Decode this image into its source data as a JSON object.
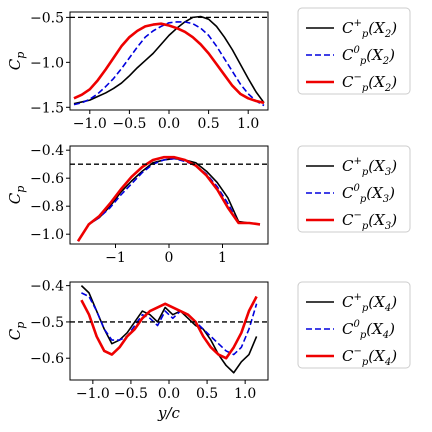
{
  "chart_data": [
    {
      "type": "line",
      "title": "",
      "xlabel": "",
      "ylabel": "C_p",
      "xlim": [
        -1.25,
        1.25
      ],
      "ylim": [
        -1.53,
        -0.44
      ],
      "xticks": [
        -1.0,
        -0.5,
        0.0,
        0.5,
        1.0
      ],
      "xtick_labels": [
        "−1.0",
        "−0.5",
        "0.0",
        "0.5",
        "1.0"
      ],
      "yticks": [
        -1.5,
        -1.0,
        -0.5
      ],
      "ytick_labels": [
        "−1.5",
        "−1.0",
        "−0.5"
      ],
      "hline": -0.5,
      "legend_position": "outside-right",
      "series": [
        {
          "name": "C_p^+(X_2)",
          "color": "#000000",
          "dash": "solid",
          "width": 1.6,
          "x": [
            -1.2,
            -1.1,
            -1.0,
            -0.9,
            -0.8,
            -0.7,
            -0.6,
            -0.5,
            -0.4,
            -0.3,
            -0.2,
            -0.1,
            0.0,
            0.1,
            0.2,
            0.3,
            0.4,
            0.5,
            0.6,
            0.7,
            0.8,
            0.9,
            1.0,
            1.1,
            1.2
          ],
          "y": [
            -1.46,
            -1.44,
            -1.42,
            -1.38,
            -1.34,
            -1.29,
            -1.23,
            -1.15,
            -1.06,
            -0.98,
            -0.9,
            -0.8,
            -0.7,
            -0.62,
            -0.55,
            -0.5,
            -0.49,
            -0.52,
            -0.6,
            -0.72,
            -0.86,
            -1.02,
            -1.18,
            -1.33,
            -1.45
          ]
        },
        {
          "name": "C_p^0(X_2)",
          "color": "#0000dd",
          "dash": "dashed",
          "width": 1.6,
          "x": [
            -1.2,
            -1.1,
            -1.0,
            -0.9,
            -0.8,
            -0.7,
            -0.6,
            -0.5,
            -0.4,
            -0.3,
            -0.2,
            -0.1,
            0.0,
            0.1,
            0.2,
            0.3,
            0.4,
            0.5,
            0.6,
            0.7,
            0.8,
            0.9,
            1.0,
            1.1,
            1.2
          ],
          "y": [
            -1.47,
            -1.45,
            -1.41,
            -1.35,
            -1.27,
            -1.18,
            -1.07,
            -0.95,
            -0.83,
            -0.72,
            -0.65,
            -0.6,
            -0.56,
            -0.55,
            -0.55,
            -0.57,
            -0.62,
            -0.7,
            -0.82,
            -0.96,
            -1.1,
            -1.24,
            -1.35,
            -1.43,
            -1.48
          ]
        },
        {
          "name": "C_p^-(X_2)",
          "color": "#ee0000",
          "dash": "solid",
          "width": 2.6,
          "x": [
            -1.2,
            -1.1,
            -1.0,
            -0.9,
            -0.8,
            -0.7,
            -0.6,
            -0.5,
            -0.4,
            -0.3,
            -0.2,
            -0.1,
            0.0,
            0.1,
            0.2,
            0.3,
            0.4,
            0.5,
            0.6,
            0.7,
            0.8,
            0.9,
            1.0,
            1.1,
            1.2
          ],
          "y": [
            -1.4,
            -1.36,
            -1.3,
            -1.2,
            -1.08,
            -0.95,
            -0.82,
            -0.72,
            -0.65,
            -0.6,
            -0.58,
            -0.57,
            -0.59,
            -0.62,
            -0.66,
            -0.72,
            -0.8,
            -0.9,
            -1.02,
            -1.14,
            -1.26,
            -1.35,
            -1.4,
            -1.43,
            -1.45
          ]
        }
      ]
    },
    {
      "type": "line",
      "title": "",
      "xlabel": "",
      "ylabel": "C_p",
      "xlim": [
        -1.85,
        1.85
      ],
      "ylim": [
        -1.07,
        -0.37
      ],
      "xticks": [
        -1,
        0,
        1
      ],
      "xtick_labels": [
        "−1",
        "0",
        "1"
      ],
      "yticks": [
        -1.0,
        -0.8,
        -0.6,
        -0.4
      ],
      "ytick_labels": [
        "−1.0",
        "−0.8",
        "−0.6",
        "−0.4"
      ],
      "hline": -0.5,
      "legend_position": "outside-right",
      "series": [
        {
          "name": "C_p^+(X_3)",
          "color": "#000000",
          "dash": "solid",
          "width": 1.6,
          "x": [
            -1.7,
            -1.5,
            -1.3,
            -1.1,
            -0.9,
            -0.7,
            -0.5,
            -0.3,
            -0.1,
            0.1,
            0.3,
            0.5,
            0.7,
            0.9,
            1.1,
            1.3,
            1.5,
            1.7
          ],
          "y": [
            -1.05,
            -0.93,
            -0.88,
            -0.8,
            -0.7,
            -0.62,
            -0.55,
            -0.49,
            -0.47,
            -0.46,
            -0.47,
            -0.49,
            -0.55,
            -0.63,
            -0.74,
            -0.91,
            -0.92,
            -0.93
          ]
        },
        {
          "name": "C_p^0(X_3)",
          "color": "#0000dd",
          "dash": "dashed",
          "width": 1.6,
          "x": [
            -1.7,
            -1.5,
            -1.3,
            -1.1,
            -0.9,
            -0.7,
            -0.5,
            -0.3,
            -0.1,
            0.1,
            0.3,
            0.5,
            0.7,
            0.9,
            1.1,
            1.3,
            1.5,
            1.7
          ],
          "y": [
            -1.05,
            -0.93,
            -0.88,
            -0.81,
            -0.72,
            -0.64,
            -0.56,
            -0.5,
            -0.47,
            -0.46,
            -0.48,
            -0.51,
            -0.57,
            -0.66,
            -0.78,
            -0.92,
            -0.92,
            -0.93
          ]
        },
        {
          "name": "C_p^-(X_3)",
          "color": "#ee0000",
          "dash": "solid",
          "width": 2.6,
          "x": [
            -1.7,
            -1.5,
            -1.3,
            -1.1,
            -0.9,
            -0.7,
            -0.5,
            -0.3,
            -0.1,
            0.1,
            0.3,
            0.5,
            0.7,
            0.9,
            1.1,
            1.3,
            1.5,
            1.7
          ],
          "y": [
            -1.05,
            -0.93,
            -0.87,
            -0.78,
            -0.68,
            -0.59,
            -0.52,
            -0.47,
            -0.45,
            -0.45,
            -0.47,
            -0.51,
            -0.58,
            -0.68,
            -0.81,
            -0.92,
            -0.92,
            -0.93
          ]
        }
      ]
    },
    {
      "type": "line",
      "title": "",
      "xlabel": "y/c",
      "ylabel": "C_p",
      "xlim": [
        -1.3,
        1.3
      ],
      "ylim": [
        -0.66,
        -0.39
      ],
      "xticks": [
        -1.0,
        -0.5,
        0.0,
        0.5,
        1.0
      ],
      "xtick_labels": [
        "−1.0",
        "−0.5",
        "0.0",
        "0.5",
        "1.0"
      ],
      "yticks": [
        -0.6,
        -0.5,
        -0.4
      ],
      "ytick_labels": [
        "−0.6",
        "−0.5",
        "−0.4"
      ],
      "hline": -0.5,
      "legend_position": "outside-right",
      "series": [
        {
          "name": "C_p^+(X_4)",
          "color": "#000000",
          "dash": "solid",
          "width": 1.6,
          "x": [
            -1.15,
            -1.05,
            -0.95,
            -0.85,
            -0.75,
            -0.65,
            -0.55,
            -0.45,
            -0.35,
            -0.25,
            -0.15,
            -0.05,
            0.05,
            0.15,
            0.25,
            0.35,
            0.45,
            0.55,
            0.65,
            0.75,
            0.85,
            0.95,
            1.05,
            1.15
          ],
          "y": [
            -0.4,
            -0.42,
            -0.47,
            -0.52,
            -0.56,
            -0.55,
            -0.53,
            -0.5,
            -0.47,
            -0.48,
            -0.5,
            -0.46,
            -0.48,
            -0.47,
            -0.49,
            -0.51,
            -0.52,
            -0.55,
            -0.59,
            -0.62,
            -0.64,
            -0.61,
            -0.59,
            -0.54
          ]
        },
        {
          "name": "C_p^0(X_4)",
          "color": "#0000dd",
          "dash": "dashed",
          "width": 1.6,
          "x": [
            -1.15,
            -1.05,
            -0.95,
            -0.85,
            -0.75,
            -0.65,
            -0.55,
            -0.45,
            -0.35,
            -0.25,
            -0.15,
            -0.05,
            0.05,
            0.15,
            0.25,
            0.35,
            0.45,
            0.55,
            0.65,
            0.75,
            0.85,
            0.95,
            1.05,
            1.15
          ],
          "y": [
            -0.42,
            -0.43,
            -0.47,
            -0.52,
            -0.55,
            -0.55,
            -0.54,
            -0.51,
            -0.48,
            -0.49,
            -0.51,
            -0.47,
            -0.49,
            -0.47,
            -0.48,
            -0.5,
            -0.52,
            -0.54,
            -0.56,
            -0.58,
            -0.59,
            -0.57,
            -0.52,
            -0.45
          ]
        },
        {
          "name": "C_p^-(X_4)",
          "color": "#ee0000",
          "dash": "solid",
          "width": 2.6,
          "x": [
            -1.15,
            -1.05,
            -0.95,
            -0.85,
            -0.75,
            -0.65,
            -0.55,
            -0.45,
            -0.35,
            -0.25,
            -0.15,
            -0.05,
            0.05,
            0.15,
            0.25,
            0.35,
            0.45,
            0.55,
            0.65,
            0.75,
            0.85,
            0.95,
            1.05,
            1.15
          ],
          "y": [
            -0.44,
            -0.48,
            -0.54,
            -0.58,
            -0.59,
            -0.57,
            -0.54,
            -0.52,
            -0.49,
            -0.47,
            -0.46,
            -0.45,
            -0.46,
            -0.47,
            -0.48,
            -0.5,
            -0.54,
            -0.57,
            -0.59,
            -0.6,
            -0.57,
            -0.53,
            -0.47,
            -0.43
          ]
        }
      ]
    }
  ]
}
